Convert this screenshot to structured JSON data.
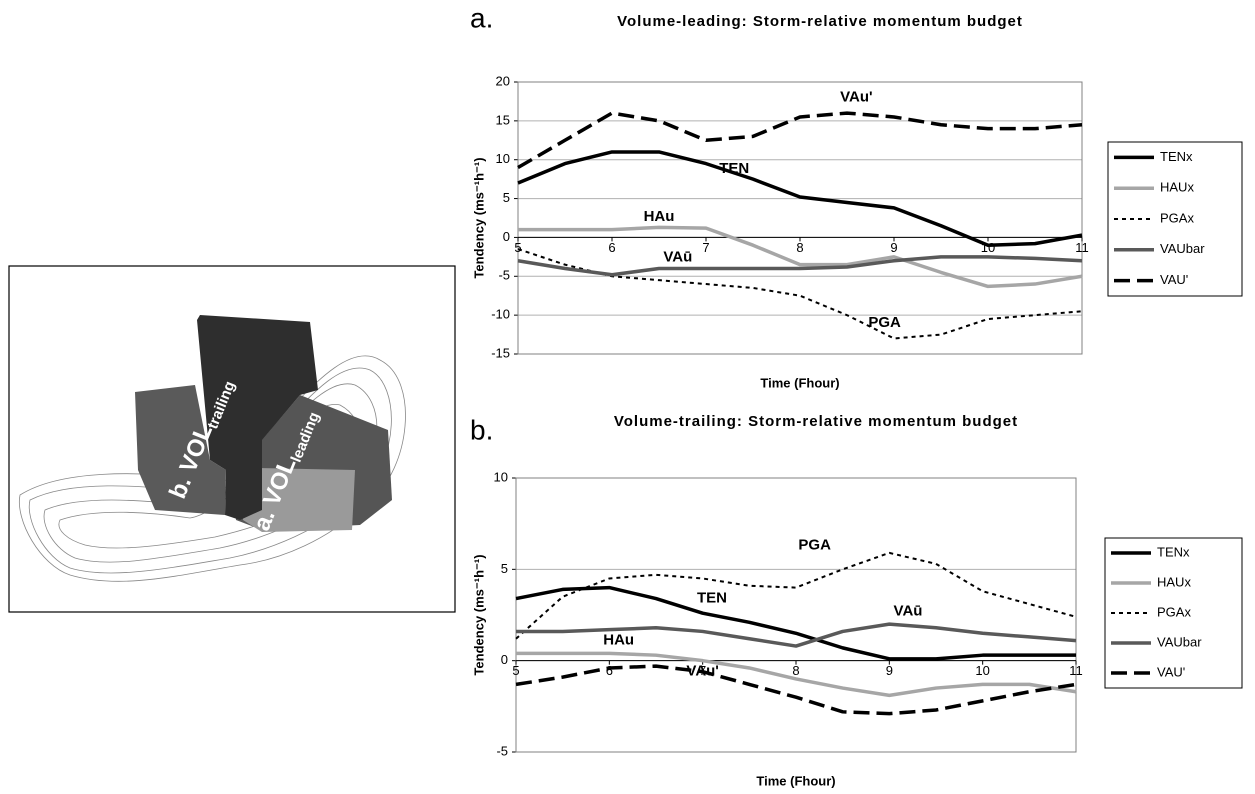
{
  "illustration": {
    "trailing_label": "b. VOL",
    "trailing_sub": "trailing",
    "leading_label": "a. VOL",
    "leading_sub": "leading"
  },
  "chart_data": [
    {
      "type": "line",
      "panel_label": "a.",
      "title": "Volume-leading: Storm-relative momentum budget",
      "x_label": "Time (Fhour)",
      "y_label": "Tendency (ms⁻¹h⁻¹)",
      "x": [
        5,
        5.5,
        6,
        6.5,
        7,
        7.5,
        8,
        8.5,
        9,
        9.5,
        10,
        10.5,
        11
      ],
      "xlim": [
        5,
        11
      ],
      "xticks": [
        5,
        6,
        7,
        8,
        9,
        10,
        11
      ],
      "ylim": [
        -15,
        20
      ],
      "yticks": [
        -15,
        -10,
        -5,
        0,
        5,
        10,
        15,
        20
      ],
      "grid": true,
      "legend": "right",
      "series": [
        {
          "name": "TENx",
          "color": "#000000",
          "style": "solid",
          "values": [
            7,
            9.5,
            11,
            11,
            9.5,
            7.5,
            5.2,
            4.5,
            3.8,
            1.5,
            -1,
            -0.8,
            0.3
          ]
        },
        {
          "name": "HAUx",
          "color": "#a6a6a6",
          "style": "solid",
          "values": [
            1,
            1,
            1,
            1.3,
            1.2,
            -1,
            -3.5,
            -3.5,
            -2.5,
            -4.5,
            -6.3,
            -6,
            -5
          ]
        },
        {
          "name": "PGAx",
          "color": "#000000",
          "style": "dotted",
          "values": [
            -1.5,
            -3.5,
            -5,
            -5.5,
            -6,
            -6.5,
            -7.5,
            -10,
            -13,
            -12.5,
            -10.5,
            -10,
            -9.5
          ]
        },
        {
          "name": "VAUbar",
          "color": "#595959",
          "style": "solid",
          "values": [
            -3,
            -4,
            -4.8,
            -4,
            -4,
            -4,
            -4,
            -3.8,
            -3,
            -2.5,
            -2.5,
            -2.7,
            -3
          ]
        },
        {
          "name": "VAU'",
          "color": "#000000",
          "style": "dashed",
          "values": [
            9,
            12.5,
            16,
            15,
            12.5,
            13,
            15.5,
            16,
            15.5,
            14.5,
            14,
            14,
            14.5
          ]
        }
      ],
      "annotations": [
        {
          "text": "VAu'",
          "x": 8.6,
          "y": 18
        },
        {
          "text": "TEN",
          "x": 7.3,
          "y": 8.8
        },
        {
          "text": "HAu",
          "x": 6.5,
          "y": 2.6
        },
        {
          "text": "VAū",
          "x": 6.7,
          "y": -2.6
        },
        {
          "text": "PGA",
          "x": 8.9,
          "y": -11
        }
      ]
    },
    {
      "type": "line",
      "panel_label": "b.",
      "title": "Volume-trailing: Storm-relative momentum budget",
      "x_label": "Time (Fhour)",
      "y_label": "Tendency (ms⁻¹h⁻¹)",
      "x": [
        5,
        5.5,
        6,
        6.5,
        7,
        7.5,
        8,
        8.5,
        9,
        9.5,
        10,
        10.5,
        11
      ],
      "xlim": [
        5,
        11
      ],
      "xticks": [
        5,
        6,
        7,
        8,
        9,
        10,
        11
      ],
      "ylim": [
        -5,
        10
      ],
      "yticks": [
        -5,
        0,
        5,
        10
      ],
      "grid": true,
      "legend": "right",
      "series": [
        {
          "name": "TENx",
          "color": "#000000",
          "style": "solid",
          "values": [
            3.4,
            3.9,
            4,
            3.4,
            2.6,
            2.1,
            1.5,
            0.7,
            0.1,
            0.1,
            0.3,
            0.3,
            0.3
          ]
        },
        {
          "name": "HAUx",
          "color": "#a6a6a6",
          "style": "solid",
          "values": [
            0.4,
            0.4,
            0.4,
            0.3,
            0,
            -0.4,
            -1,
            -1.5,
            -1.9,
            -1.5,
            -1.3,
            -1.3,
            -1.7
          ]
        },
        {
          "name": "PGAx",
          "color": "#000000",
          "style": "dotted",
          "values": [
            1.2,
            3.5,
            4.5,
            4.7,
            4.5,
            4.1,
            4,
            5,
            5.9,
            5.3,
            3.8,
            3.1,
            2.4
          ]
        },
        {
          "name": "VAUbar",
          "color": "#595959",
          "style": "solid",
          "values": [
            1.6,
            1.6,
            1.7,
            1.8,
            1.6,
            1.2,
            0.8,
            1.6,
            2,
            1.8,
            1.5,
            1.3,
            1.1
          ]
        },
        {
          "name": "VAU'",
          "color": "#000000",
          "style": "dashed",
          "values": [
            -1.3,
            -0.9,
            -0.4,
            -0.3,
            -0.6,
            -1.3,
            -2,
            -2.8,
            -2.9,
            -2.7,
            -2.2,
            -1.7,
            -1.3
          ]
        }
      ],
      "annotations": [
        {
          "text": "PGA",
          "x": 8.2,
          "y": 6.3
        },
        {
          "text": "TEN",
          "x": 7.1,
          "y": 3.4
        },
        {
          "text": "VAū",
          "x": 9.2,
          "y": 2.7
        },
        {
          "text": "HAu",
          "x": 6.1,
          "y": 1.1
        },
        {
          "text": "VAu'",
          "x": 7,
          "y": -0.6
        }
      ]
    }
  ]
}
